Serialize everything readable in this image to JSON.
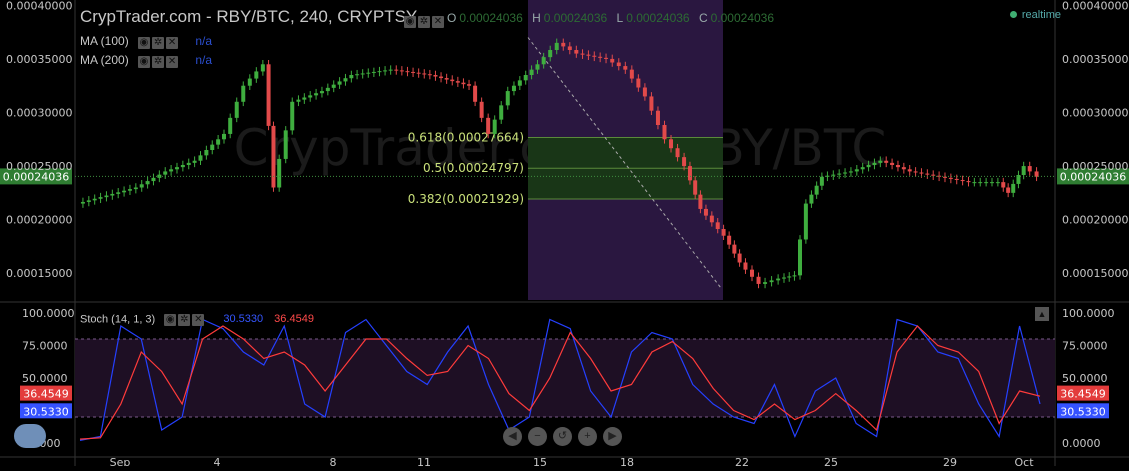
{
  "header": {
    "title": "CrypTrader.com - RBY/BTC, 240, CRYPTSY",
    "ohlc": [
      {
        "label": "O",
        "value": "0.00024036"
      },
      {
        "label": "H",
        "value": "0.00024036"
      },
      {
        "label": "L",
        "value": "0.00024036"
      },
      {
        "label": "C",
        "value": "0.00024036"
      }
    ],
    "realtime_label": "realtime",
    "indicators": [
      {
        "label": "MA (100)",
        "value": "n/a"
      },
      {
        "label": "MA (200)",
        "value": "n/a"
      }
    ]
  },
  "watermark": "CrypTrader.com - RBY/BTC",
  "stoch_header": {
    "label": "Stoch (14, 1, 3)",
    "k_value": "30.5330",
    "d_value": "36.4549"
  },
  "colors": {
    "up": "#3fae3f",
    "down": "#e24a4a",
    "stoch_k": "#2540ff",
    "stoch_d": "#ff3b3b",
    "fib_band": "#163c10",
    "highlight": "#2a1740",
    "price_tag": "#2f7d32",
    "stoch_tag_d": "#e33b3b",
    "stoch_tag_k": "#3552ff"
  },
  "icons": [
    "eye-icon",
    "gear-icon",
    "close-icon",
    "cloud-icon",
    "arrow-up-icon",
    "scroll-left-icon",
    "zoom-out-icon",
    "reset-icon",
    "zoom-in-icon",
    "scroll-right-icon"
  ],
  "chart_data": [
    {
      "type": "candlestick",
      "title": "CrypTrader.com - RBY/BTC, 240, CRYPTSY",
      "ylim": [
        0.000125,
        0.000405
      ],
      "y_ticks": [
        "0.00040000",
        "0.00035000",
        "0.00030000",
        "0.00025000",
        "0.00020000",
        "0.00015000"
      ],
      "x_ticks": [
        "Sep",
        "4",
        "8",
        "11",
        "15",
        "18",
        "22",
        "25",
        "29",
        "Oct"
      ],
      "last_price": "0.00024036",
      "fibonacci": [
        {
          "label": "0.618(0.00027664)",
          "value": 0.00027664
        },
        {
          "label": "0.5(0.00024797)",
          "value": 0.00024797
        },
        {
          "label": "0.382(0.00021929)",
          "value": 0.00021929
        }
      ],
      "price_path": [
        [
          0,
          0.000215
        ],
        [
          30,
          0.00023
        ],
        [
          45,
          0.000245
        ],
        [
          60,
          0.000255
        ],
        [
          75,
          0.00028
        ],
        [
          85,
          0.000325
        ],
        [
          95,
          0.000345
        ],
        [
          100,
          0.00023
        ],
        [
          110,
          0.00031
        ],
        [
          125,
          0.00032
        ],
        [
          140,
          0.000335
        ],
        [
          160,
          0.00034
        ],
        [
          180,
          0.000335
        ],
        [
          200,
          0.000325
        ],
        [
          210,
          0.00028
        ],
        [
          220,
          0.00032
        ],
        [
          235,
          0.000345
        ],
        [
          245,
          0.000365
        ],
        [
          255,
          0.000355
        ],
        [
          270,
          0.00035
        ],
        [
          280,
          0.00034
        ],
        [
          290,
          0.000315
        ],
        [
          300,
          0.000275
        ],
        [
          310,
          0.00025
        ],
        [
          318,
          0.00021
        ],
        [
          330,
          0.000185
        ],
        [
          338,
          0.00016
        ],
        [
          348,
          0.00014
        ],
        [
          358,
          0.000145
        ],
        [
          366,
          0.000148
        ],
        [
          372,
          0.000215
        ],
        [
          380,
          0.00024
        ],
        [
          395,
          0.000245
        ],
        [
          410,
          0.000255
        ],
        [
          425,
          0.000245
        ],
        [
          440,
          0.00024
        ],
        [
          455,
          0.000235
        ],
        [
          470,
          0.000235
        ],
        [
          475,
          0.000225
        ],
        [
          483,
          0.00025
        ],
        [
          490,
          0.00024
        ]
      ]
    },
    {
      "type": "line",
      "title": "Stoch (14, 1, 3)",
      "ylim": [
        0,
        100
      ],
      "y_ticks": [
        "100.0000",
        "75.0000",
        "50.0000",
        "25.0000",
        "0.0000"
      ],
      "band": [
        20,
        80
      ],
      "series": [
        {
          "name": "30.5330",
          "values": [
            2,
            5,
            90,
            80,
            10,
            20,
            95,
            88,
            70,
            60,
            90,
            30,
            20,
            85,
            95,
            75,
            55,
            45,
            70,
            90,
            45,
            10,
            20,
            95,
            88,
            40,
            20,
            70,
            85,
            80,
            45,
            30,
            20,
            15,
            45,
            5,
            40,
            50,
            15,
            5,
            95,
            90,
            70,
            65,
            30,
            5,
            90,
            30
          ]
        },
        {
          "name": "36.4549",
          "values": [
            3,
            4,
            30,
            70,
            55,
            30,
            80,
            90,
            80,
            65,
            70,
            60,
            40,
            60,
            80,
            80,
            65,
            52,
            55,
            75,
            65,
            38,
            25,
            50,
            85,
            65,
            40,
            45,
            70,
            78,
            65,
            42,
            25,
            18,
            30,
            18,
            25,
            38,
            25,
            10,
            70,
            90,
            75,
            70,
            55,
            15,
            40,
            36
          ]
        }
      ]
    }
  ]
}
